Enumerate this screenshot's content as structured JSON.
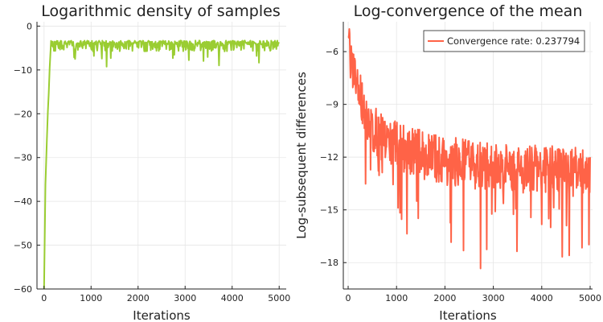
{
  "chart_data": [
    {
      "type": "line",
      "title": "Logarithmic density of samples",
      "xlabel": "Iterations",
      "ylabel": "",
      "xlim": [
        -150,
        5150
      ],
      "ylim": [
        -60,
        1
      ],
      "xticks": [
        0,
        1000,
        2000,
        3000,
        4000,
        5000
      ],
      "xtick_labels": [
        "0",
        "1000",
        "2000",
        "3000",
        "4000",
        "5000"
      ],
      "yticks": [
        0,
        -10,
        -20,
        -30,
        -40,
        -50,
        -60
      ],
      "ytick_labels": [
        "0",
        "−10",
        "−20",
        "−30",
        "−40",
        "−50",
        "−60"
      ],
      "grid": true,
      "legend": "none",
      "series": [
        {
          "color": "#9acd32",
          "trend": {
            "x": [
              0,
              30,
              60,
              80,
              100,
              120,
              150
            ],
            "y": [
              -60,
              -35,
              -27,
              -21,
              -14,
              -8,
              -3.5
            ]
          },
          "plateau": {
            "x_start": 150,
            "x_end": 5000,
            "top": -3.3,
            "base": -4.2,
            "typical_dip_depth": 1.6,
            "deep_dip_min": -9.5
          }
        }
      ]
    },
    {
      "type": "line",
      "title": "Log-convergence of the mean",
      "xlabel": "Iterations",
      "ylabel": "Log-subsequent differences",
      "xlim": [
        -100,
        5050
      ],
      "ylim": [
        -19.5,
        -4.3
      ],
      "xticks": [
        0,
        1000,
        2000,
        3000,
        4000,
        5000
      ],
      "xtick_labels": [
        "0",
        "1000",
        "2000",
        "3000",
        "4000",
        "5000"
      ],
      "yticks": [
        -6,
        -9,
        -12,
        -15,
        -18
      ],
      "ytick_labels": [
        "−6",
        "−9",
        "−12",
        "−15",
        "−18"
      ],
      "grid": true,
      "legend": "top-right",
      "series": [
        {
          "name": "Convergence rate: 0.237794",
          "color": "#ff6347",
          "trend": {
            "x": [
              0,
              20,
              60,
              100,
              200,
              300,
              400,
              500,
              600,
              800,
              1000,
              1300,
              1600,
              2000,
              2500,
              3000,
              3500,
              4000,
              4500,
              5000
            ],
            "y": [
              -5.2,
              -5.5,
              -6.5,
              -7.3,
              -8.0,
              -8.7,
              -9.6,
              -10.3,
              -10.6,
              -11.0,
              -11.2,
              -11.5,
              -11.8,
              -12.1,
              -12.3,
              -12.5,
              -12.6,
              -12.6,
              -12.7,
              -12.8
            ]
          },
          "noise": {
            "up": 1.3,
            "down": 1.5,
            "deep_spike_min": -18.8
          }
        }
      ]
    }
  ]
}
